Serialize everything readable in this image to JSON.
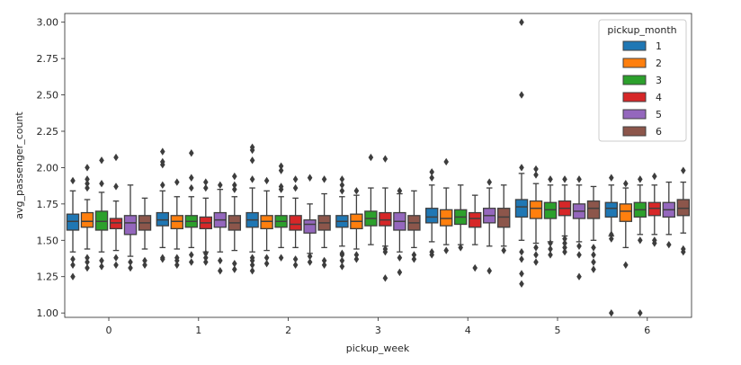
{
  "chart_data": {
    "type": "boxplot",
    "xlabel": "pickup_week",
    "ylabel": "avg_passenger_count",
    "ylim": [
      0.97,
      3.06
    ],
    "yticks": [
      "1.00",
      "1.25",
      "1.50",
      "1.75",
      "2.00",
      "2.25",
      "2.50",
      "2.75",
      "3.00"
    ],
    "categories": [
      "0",
      "1",
      "2",
      "3",
      "4",
      "5",
      "6"
    ],
    "legend": {
      "title": "pickup_month",
      "position": "top-right"
    },
    "series": [
      {
        "name": "1",
        "color": "#1f77b4",
        "boxes": [
          {
            "q1": 1.57,
            "med": 1.63,
            "q3": 1.68,
            "wlo": 1.42,
            "whi": 1.84,
            "out": [
              1.25,
              1.33,
              1.37,
              1.91
            ]
          },
          {
            "q1": 1.6,
            "med": 1.64,
            "q3": 1.69,
            "wlo": 1.45,
            "whi": 1.84,
            "out": [
              1.37,
              1.38,
              1.88,
              2.02,
              2.04,
              2.11
            ]
          },
          {
            "q1": 1.59,
            "med": 1.64,
            "q3": 1.69,
            "wlo": 1.42,
            "whi": 1.86,
            "out": [
              1.29,
              1.33,
              1.36,
              1.38,
              1.92,
              2.05,
              2.12,
              2.14
            ]
          },
          {
            "q1": 1.59,
            "med": 1.63,
            "q3": 1.67,
            "wlo": 1.46,
            "whi": 1.8,
            "out": [
              1.32,
              1.36,
              1.4,
              1.41,
              1.84,
              1.88,
              1.92
            ]
          },
          {
            "q1": 1.62,
            "med": 1.66,
            "q3": 1.72,
            "wlo": 1.49,
            "whi": 1.88,
            "out": [
              1.4,
              1.42,
              1.93,
              1.97
            ]
          },
          {
            "q1": 1.66,
            "med": 1.73,
            "q3": 1.78,
            "wlo": 1.5,
            "whi": 1.96,
            "out": [
              1.2,
              1.27,
              1.37,
              1.42,
              2.0,
              2.5,
              3.0
            ]
          },
          {
            "q1": 1.66,
            "med": 1.72,
            "q3": 1.76,
            "wlo": 1.53,
            "whi": 1.88,
            "out": [
              1.0,
              1.51,
              1.54,
              1.93
            ]
          }
        ]
      },
      {
        "name": "2",
        "color": "#ff7f0e",
        "boxes": [
          {
            "q1": 1.59,
            "med": 1.63,
            "q3": 1.69,
            "wlo": 1.44,
            "whi": 1.78,
            "out": [
              1.31,
              1.35,
              1.38,
              1.86,
              1.89,
              1.92,
              2.0
            ]
          },
          {
            "q1": 1.58,
            "med": 1.63,
            "q3": 1.67,
            "wlo": 1.44,
            "whi": 1.8,
            "out": [
              1.33,
              1.36,
              1.38,
              1.9
            ]
          },
          {
            "q1": 1.58,
            "med": 1.63,
            "q3": 1.67,
            "wlo": 1.43,
            "whi": 1.84,
            "out": [
              1.34,
              1.38,
              1.91
            ]
          },
          {
            "q1": 1.58,
            "med": 1.63,
            "q3": 1.68,
            "wlo": 1.44,
            "whi": 1.81,
            "out": [
              1.37,
              1.4,
              1.84
            ]
          },
          {
            "q1": 1.6,
            "med": 1.65,
            "q3": 1.71,
            "wlo": 1.47,
            "whi": 1.86,
            "out": [
              1.43,
              2.04
            ]
          },
          {
            "q1": 1.65,
            "med": 1.72,
            "q3": 1.77,
            "wlo": 1.48,
            "whi": 1.89,
            "out": [
              1.35,
              1.4,
              1.45,
              1.95,
              1.99
            ]
          },
          {
            "q1": 1.63,
            "med": 1.7,
            "q3": 1.75,
            "wlo": 1.45,
            "whi": 1.86,
            "out": [
              1.33,
              1.89
            ]
          }
        ]
      },
      {
        "name": "3",
        "color": "#2ca02c",
        "boxes": [
          {
            "q1": 1.57,
            "med": 1.63,
            "q3": 1.7,
            "wlo": 1.42,
            "whi": 1.83,
            "out": [
              1.32,
              1.36,
              1.89,
              2.05
            ]
          },
          {
            "q1": 1.59,
            "med": 1.63,
            "q3": 1.67,
            "wlo": 1.45,
            "whi": 1.8,
            "out": [
              1.35,
              1.4,
              1.86,
              1.93,
              2.1
            ]
          },
          {
            "q1": 1.59,
            "med": 1.63,
            "q3": 1.67,
            "wlo": 1.45,
            "whi": 1.8,
            "out": [
              1.38,
              1.85,
              1.87,
              1.98,
              2.01
            ]
          },
          {
            "q1": 1.6,
            "med": 1.65,
            "q3": 1.7,
            "wlo": 1.47,
            "whi": 1.86,
            "out": [
              2.07
            ]
          },
          {
            "q1": 1.61,
            "med": 1.66,
            "q3": 1.71,
            "wlo": 1.47,
            "whi": 1.88,
            "out": [
              1.45
            ]
          },
          {
            "q1": 1.65,
            "med": 1.71,
            "q3": 1.76,
            "wlo": 1.49,
            "whi": 1.88,
            "out": [
              1.4,
              1.44,
              1.48,
              1.92
            ]
          },
          {
            "q1": 1.66,
            "med": 1.71,
            "q3": 1.76,
            "wlo": 1.54,
            "whi": 1.88,
            "out": [
              1.0,
              1.5,
              1.92
            ]
          }
        ]
      },
      {
        "name": "4",
        "color": "#d62728",
        "boxes": [
          {
            "q1": 1.58,
            "med": 1.62,
            "q3": 1.65,
            "wlo": 1.43,
            "whi": 1.77,
            "out": [
              1.33,
              1.38,
              1.87,
              2.07
            ]
          },
          {
            "q1": 1.58,
            "med": 1.62,
            "q3": 1.66,
            "wlo": 1.42,
            "whi": 1.79,
            "out": [
              1.35,
              1.38,
              1.41,
              1.86,
              1.9
            ]
          },
          {
            "q1": 1.57,
            "med": 1.61,
            "q3": 1.67,
            "wlo": 1.45,
            "whi": 1.79,
            "out": [
              1.33,
              1.37,
              1.86,
              1.92
            ]
          },
          {
            "q1": 1.6,
            "med": 1.64,
            "q3": 1.69,
            "wlo": 1.46,
            "whi": 1.86,
            "out": [
              1.24,
              1.42,
              1.44,
              2.06
            ]
          },
          {
            "q1": 1.59,
            "med": 1.65,
            "q3": 1.69,
            "wlo": 1.47,
            "whi": 1.81,
            "out": [
              1.31
            ]
          },
          {
            "q1": 1.67,
            "med": 1.72,
            "q3": 1.77,
            "wlo": 1.53,
            "whi": 1.88,
            "out": [
              1.42,
              1.45,
              1.48,
              1.51,
              1.92
            ]
          },
          {
            "q1": 1.67,
            "med": 1.72,
            "q3": 1.76,
            "wlo": 1.54,
            "whi": 1.88,
            "out": [
              1.48,
              1.5,
              1.94
            ]
          }
        ]
      },
      {
        "name": "5",
        "color": "#9467bd",
        "boxes": [
          {
            "q1": 1.54,
            "med": 1.62,
            "q3": 1.67,
            "wlo": 1.39,
            "whi": 1.88,
            "out": [
              1.31,
              1.35
            ]
          },
          {
            "q1": 1.59,
            "med": 1.64,
            "q3": 1.69,
            "wlo": 1.42,
            "whi": 1.85,
            "out": [
              1.29,
              1.36,
              1.88
            ]
          },
          {
            "q1": 1.55,
            "med": 1.61,
            "q3": 1.64,
            "wlo": 1.41,
            "whi": 1.75,
            "out": [
              1.35,
              1.39,
              1.93
            ]
          },
          {
            "q1": 1.57,
            "med": 1.63,
            "q3": 1.69,
            "wlo": 1.42,
            "whi": 1.82,
            "out": [
              1.28,
              1.38,
              1.84
            ]
          },
          {
            "q1": 1.62,
            "med": 1.67,
            "q3": 1.72,
            "wlo": 1.46,
            "whi": 1.86,
            "out": [
              1.29,
              1.9
            ]
          },
          {
            "q1": 1.65,
            "med": 1.7,
            "q3": 1.75,
            "wlo": 1.49,
            "whi": 1.88,
            "out": [
              1.25,
              1.4,
              1.46,
              1.92
            ]
          },
          {
            "q1": 1.66,
            "med": 1.71,
            "q3": 1.76,
            "wlo": 1.54,
            "whi": 1.9,
            "out": [
              1.47
            ]
          }
        ]
      },
      {
        "name": "6",
        "color": "#8c564b",
        "boxes": [
          {
            "q1": 1.57,
            "med": 1.62,
            "q3": 1.67,
            "wlo": 1.44,
            "whi": 1.79,
            "out": [
              1.33,
              1.36
            ]
          },
          {
            "q1": 1.57,
            "med": 1.62,
            "q3": 1.67,
            "wlo": 1.43,
            "whi": 1.8,
            "out": [
              1.3,
              1.34,
              1.85,
              1.88,
              1.94
            ]
          },
          {
            "q1": 1.57,
            "med": 1.62,
            "q3": 1.67,
            "wlo": 1.45,
            "whi": 1.82,
            "out": [
              1.33,
              1.36,
              1.92
            ]
          },
          {
            "q1": 1.57,
            "med": 1.62,
            "q3": 1.67,
            "wlo": 1.45,
            "whi": 1.84,
            "out": [
              1.37,
              1.4
            ]
          },
          {
            "q1": 1.59,
            "med": 1.66,
            "q3": 1.72,
            "wlo": 1.46,
            "whi": 1.88,
            "out": [
              1.43
            ]
          },
          {
            "q1": 1.65,
            "med": 1.72,
            "q3": 1.77,
            "wlo": 1.5,
            "whi": 1.87,
            "out": [
              1.3,
              1.35,
              1.4,
              1.45
            ]
          },
          {
            "q1": 1.67,
            "med": 1.72,
            "q3": 1.78,
            "wlo": 1.55,
            "whi": 1.9,
            "out": [
              1.42,
              1.44,
              1.98
            ]
          }
        ]
      }
    ]
  }
}
